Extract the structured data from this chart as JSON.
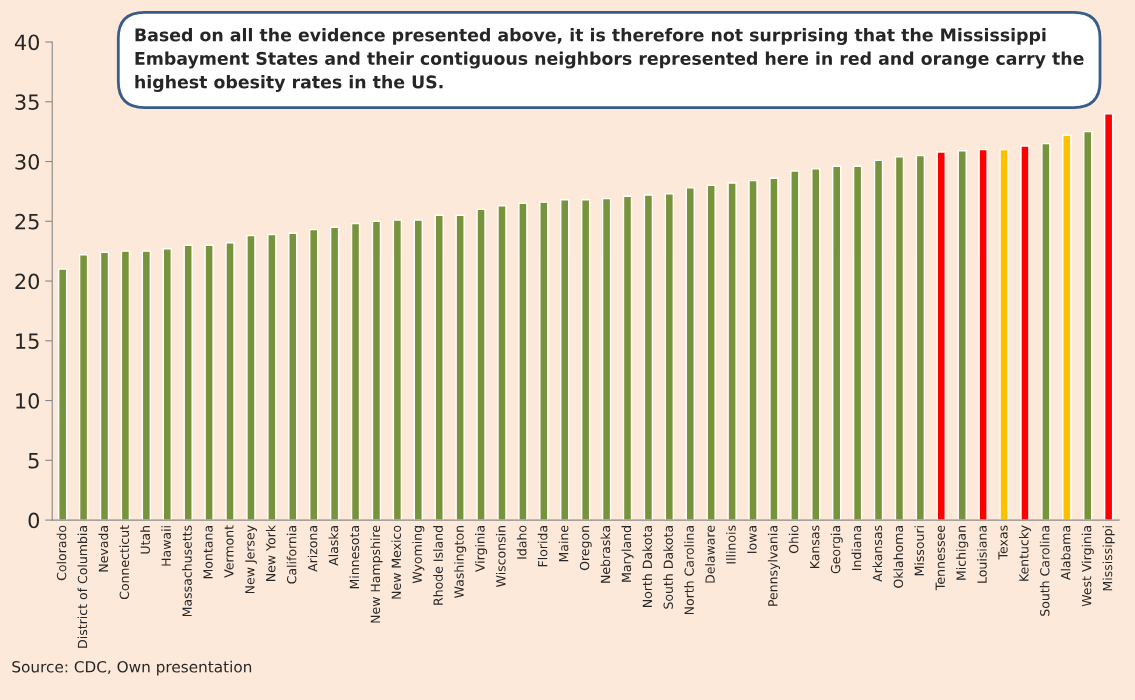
{
  "chart_data": {
    "type": "bar",
    "categories": [
      "Colorado",
      "District of Columbia",
      "Nevada",
      "Connecticut",
      "Utah",
      "Hawaii",
      "Massachusetts",
      "Montana",
      "Vermont",
      "New Jersey",
      "New York",
      "California",
      "Arizona",
      "Alaska",
      "Minnesota",
      "New Hampshire",
      "New Mexico",
      "Wyoming",
      "Rhode Island",
      "Washington",
      "Virginia",
      "Wisconsin",
      "Idaho",
      "Florida",
      "Maine",
      "Oregon",
      "Nebraska",
      "Maryland",
      "North Dakota",
      "South Dakota",
      "North Carolina",
      "Delaware",
      "Illinois",
      "Iowa",
      "Pennsylvania",
      "Ohio",
      "Kansas",
      "Georgia",
      "Indiana",
      "Arkansas",
      "Oklahoma",
      "Missouri",
      "Tennessee",
      "Michigan",
      "Louisiana",
      "Texas",
      "Kentucky",
      "South Carolina",
      "Alabama",
      "West Virginia",
      "Mississippi"
    ],
    "values": [
      21.0,
      22.2,
      22.4,
      22.5,
      22.5,
      22.7,
      23.0,
      23.0,
      23.2,
      23.8,
      23.9,
      24.0,
      24.3,
      24.5,
      24.8,
      25.0,
      25.1,
      25.1,
      25.5,
      25.5,
      26.0,
      26.3,
      26.5,
      26.6,
      26.8,
      26.8,
      26.9,
      27.1,
      27.2,
      27.3,
      27.8,
      28.0,
      28.2,
      28.4,
      28.6,
      29.2,
      29.4,
      29.6,
      29.6,
      30.1,
      30.4,
      30.5,
      30.8,
      30.9,
      31.0,
      31.0,
      31.3,
      31.5,
      32.2,
      32.5,
      34.0
    ],
    "colors": [
      "#77933c",
      "#77933c",
      "#77933c",
      "#77933c",
      "#77933c",
      "#77933c",
      "#77933c",
      "#77933c",
      "#77933c",
      "#77933c",
      "#77933c",
      "#77933c",
      "#77933c",
      "#77933c",
      "#77933c",
      "#77933c",
      "#77933c",
      "#77933c",
      "#77933c",
      "#77933c",
      "#77933c",
      "#77933c",
      "#77933c",
      "#77933c",
      "#77933c",
      "#77933c",
      "#77933c",
      "#77933c",
      "#77933c",
      "#77933c",
      "#77933c",
      "#77933c",
      "#77933c",
      "#77933c",
      "#77933c",
      "#77933c",
      "#77933c",
      "#77933c",
      "#77933c",
      "#77933c",
      "#77933c",
      "#77933c",
      "#ff0000",
      "#77933c",
      "#ff0000",
      "#ffc000",
      "#ff0000",
      "#77933c",
      "#ffc000",
      "#77933c",
      "#ff0000"
    ],
    "ylim": [
      0,
      40
    ],
    "yticks": [
      0,
      5,
      10,
      15,
      20,
      25,
      30,
      35,
      40
    ],
    "grid": false,
    "annotations": [
      "Based on all the evidence presented above, it is therefore not surprising that the Mississippi Embayment States and their contiguous neighbors represented here in red and orange carry the highest obesity rates in the US.",
      "Source: CDC, Own presentation"
    ]
  }
}
